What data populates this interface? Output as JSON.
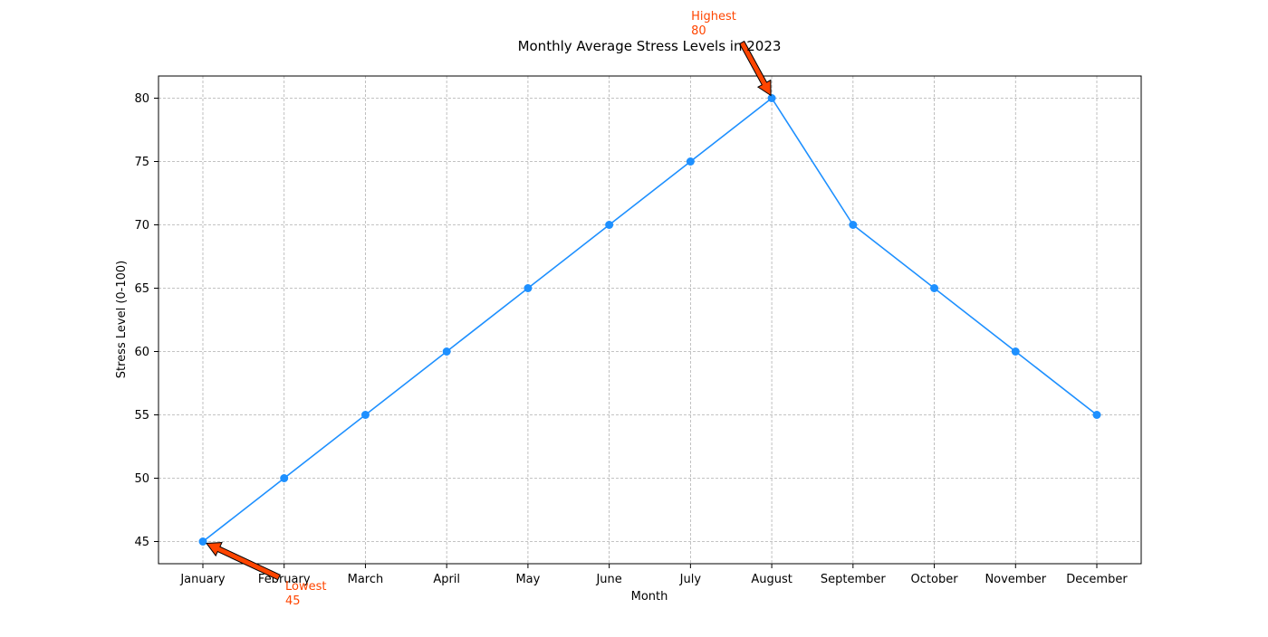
{
  "chart_data": {
    "type": "line",
    "title": "Monthly Average Stress Levels in 2023",
    "xlabel": "Month",
    "ylabel": "Stress Level (0-100)",
    "categories": [
      "January",
      "February",
      "March",
      "April",
      "May",
      "June",
      "July",
      "August",
      "September",
      "October",
      "November",
      "December"
    ],
    "series": [
      {
        "values": [
          45,
          50,
          55,
          60,
          65,
          70,
          75,
          80,
          70,
          65,
          60,
          55
        ],
        "color": "#1e90ff",
        "marker": "circle"
      }
    ],
    "ylim": [
      43.25,
      81.75
    ],
    "yticks": [
      45,
      50,
      55,
      60,
      65,
      70,
      75,
      80
    ],
    "grid": true,
    "grid_style": "dashed",
    "annotations": [
      {
        "label_line1": "Highest",
        "label_line2": "80",
        "category": "August",
        "value": 80,
        "color": "#ff4500"
      },
      {
        "label_line1": "Lowest",
        "label_line2": "45",
        "category": "January",
        "value": 45,
        "color": "#ff4500"
      }
    ]
  }
}
